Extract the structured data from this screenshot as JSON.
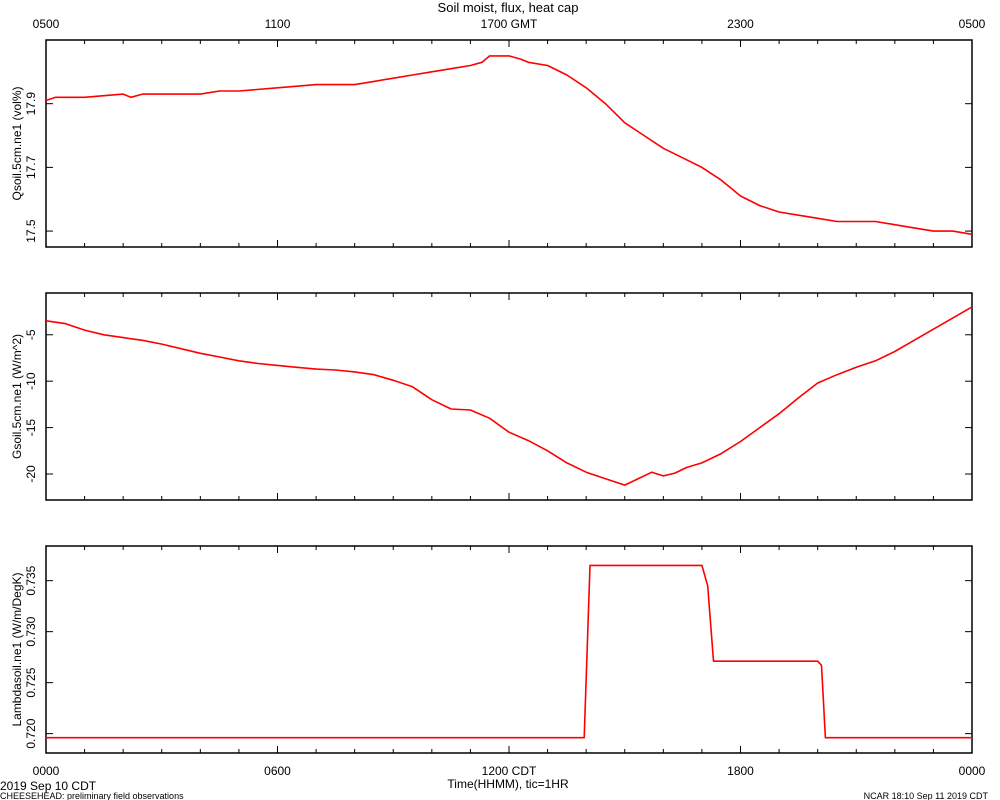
{
  "chart_data": [
    {
      "type": "line",
      "title": "Soil moist, flux, heat cap",
      "ylabel": "Qsoil.5cm.ne1 (vol%)",
      "ylim": [
        17.45,
        18.1
      ],
      "yticks": [
        17.5,
        17.7,
        17.9
      ],
      "ytick_labels": [
        "17.5",
        "17.7",
        "17.9"
      ],
      "xlim": [
        0,
        24
      ],
      "top_axis_ticks": [
        0,
        6,
        12,
        18,
        24
      ],
      "top_axis_labels": [
        "0500",
        "1100",
        "1700 GMT",
        "2300",
        "0500"
      ],
      "color": "#ff0000",
      "grid": false,
      "x": [
        0,
        0.25,
        0.5,
        1,
        2,
        2.2,
        2.5,
        3,
        3.2,
        4,
        4.5,
        5,
        6,
        7,
        8,
        8.5,
        9,
        9.5,
        10,
        10.5,
        11,
        11.3,
        11.5,
        11.6,
        11.8,
        12,
        12.3,
        12.5,
        13,
        13.5,
        14,
        14.5,
        15,
        15.5,
        16,
        16.5,
        17,
        17.5,
        18,
        18.5,
        19,
        19.5,
        20,
        20.5,
        21,
        21.5,
        22,
        22.5,
        23,
        23.5,
        24
      ],
      "y": [
        17.91,
        17.92,
        17.92,
        17.92,
        17.93,
        17.92,
        17.93,
        17.93,
        17.93,
        17.93,
        17.94,
        17.94,
        17.95,
        17.96,
        17.96,
        17.97,
        17.98,
        17.99,
        18.0,
        18.01,
        18.02,
        18.03,
        18.05,
        18.05,
        18.05,
        18.05,
        18.04,
        18.03,
        18.02,
        17.99,
        17.95,
        17.9,
        17.84,
        17.8,
        17.76,
        17.73,
        17.7,
        17.66,
        17.61,
        17.58,
        17.56,
        17.55,
        17.54,
        17.53,
        17.53,
        17.53,
        17.52,
        17.51,
        17.5,
        17.5,
        17.49
      ]
    },
    {
      "type": "line",
      "ylabel": "Gsoil.5cm.ne1 (W/m^2)",
      "ylim": [
        -22.8,
        -0.5
      ],
      "yticks": [
        -20,
        -15,
        -10,
        -5
      ],
      "ytick_labels": [
        "-20",
        "-15",
        "-10",
        "-5"
      ],
      "xlim": [
        0,
        24
      ],
      "color": "#ff0000",
      "grid": false,
      "x": [
        0,
        0.5,
        1,
        1.5,
        2,
        2.5,
        3,
        3.5,
        4,
        4.5,
        5,
        5.5,
        6,
        6.5,
        7,
        7.5,
        8,
        8.5,
        9,
        9.5,
        10,
        10.5,
        11,
        11.5,
        12,
        12.5,
        13,
        13.5,
        14,
        14.5,
        15,
        15.3,
        15.7,
        16,
        16.3,
        16.6,
        17,
        17.5,
        18,
        18.5,
        19,
        19.5,
        20,
        20.5,
        21,
        21.5,
        22,
        22.5,
        23,
        23.5,
        24
      ],
      "y": [
        -3.5,
        -3.8,
        -4.5,
        -5.0,
        -5.3,
        -5.6,
        -6.0,
        -6.5,
        -7.0,
        -7.4,
        -7.8,
        -8.1,
        -8.3,
        -8.5,
        -8.7,
        -8.8,
        -9.0,
        -9.3,
        -9.9,
        -10.6,
        -12.0,
        -13.0,
        -13.1,
        -14.0,
        -15.5,
        -16.4,
        -17.5,
        -18.8,
        -19.8,
        -20.5,
        -21.2,
        -20.6,
        -19.8,
        -20.2,
        -19.9,
        -19.3,
        -18.8,
        -17.8,
        -16.5,
        -15.0,
        -13.5,
        -11.8,
        -10.2,
        -9.3,
        -8.5,
        -7.8,
        -6.8,
        -5.6,
        -4.4,
        -3.2,
        -2.0
      ]
    },
    {
      "type": "line",
      "ylabel": "Lambdasoil.ne1 (W/m/DegK)",
      "ylim": [
        0.7181,
        0.7384
      ],
      "yticks": [
        0.72,
        0.725,
        0.73,
        0.735
      ],
      "ytick_labels": [
        "0.720",
        "0.725",
        "0.730",
        "0.735"
      ],
      "xlim": [
        0,
        24
      ],
      "xticks": [
        0,
        6,
        12,
        18,
        24
      ],
      "xtick_labels": [
        "0000",
        "0600",
        "1200 CDT",
        "1800",
        "0000"
      ],
      "xlabel": "Time(HHMM), tic=1HR",
      "color": "#ff0000",
      "grid": false,
      "x": [
        0,
        13.95,
        14.1,
        17.0,
        17.15,
        17.3,
        20.0,
        20.1,
        20.2,
        24
      ],
      "y": [
        0.7196,
        0.7196,
        0.7365,
        0.7365,
        0.7345,
        0.7271,
        0.7271,
        0.7267,
        0.7196,
        0.7196
      ]
    }
  ],
  "footer": {
    "date_label": "2019 Sep 10 CDT",
    "project_label": "CHEESEHEAD: preliminary field observations",
    "stamp_label": "NCAR 18:10 Sep 11 2019 CDT"
  }
}
